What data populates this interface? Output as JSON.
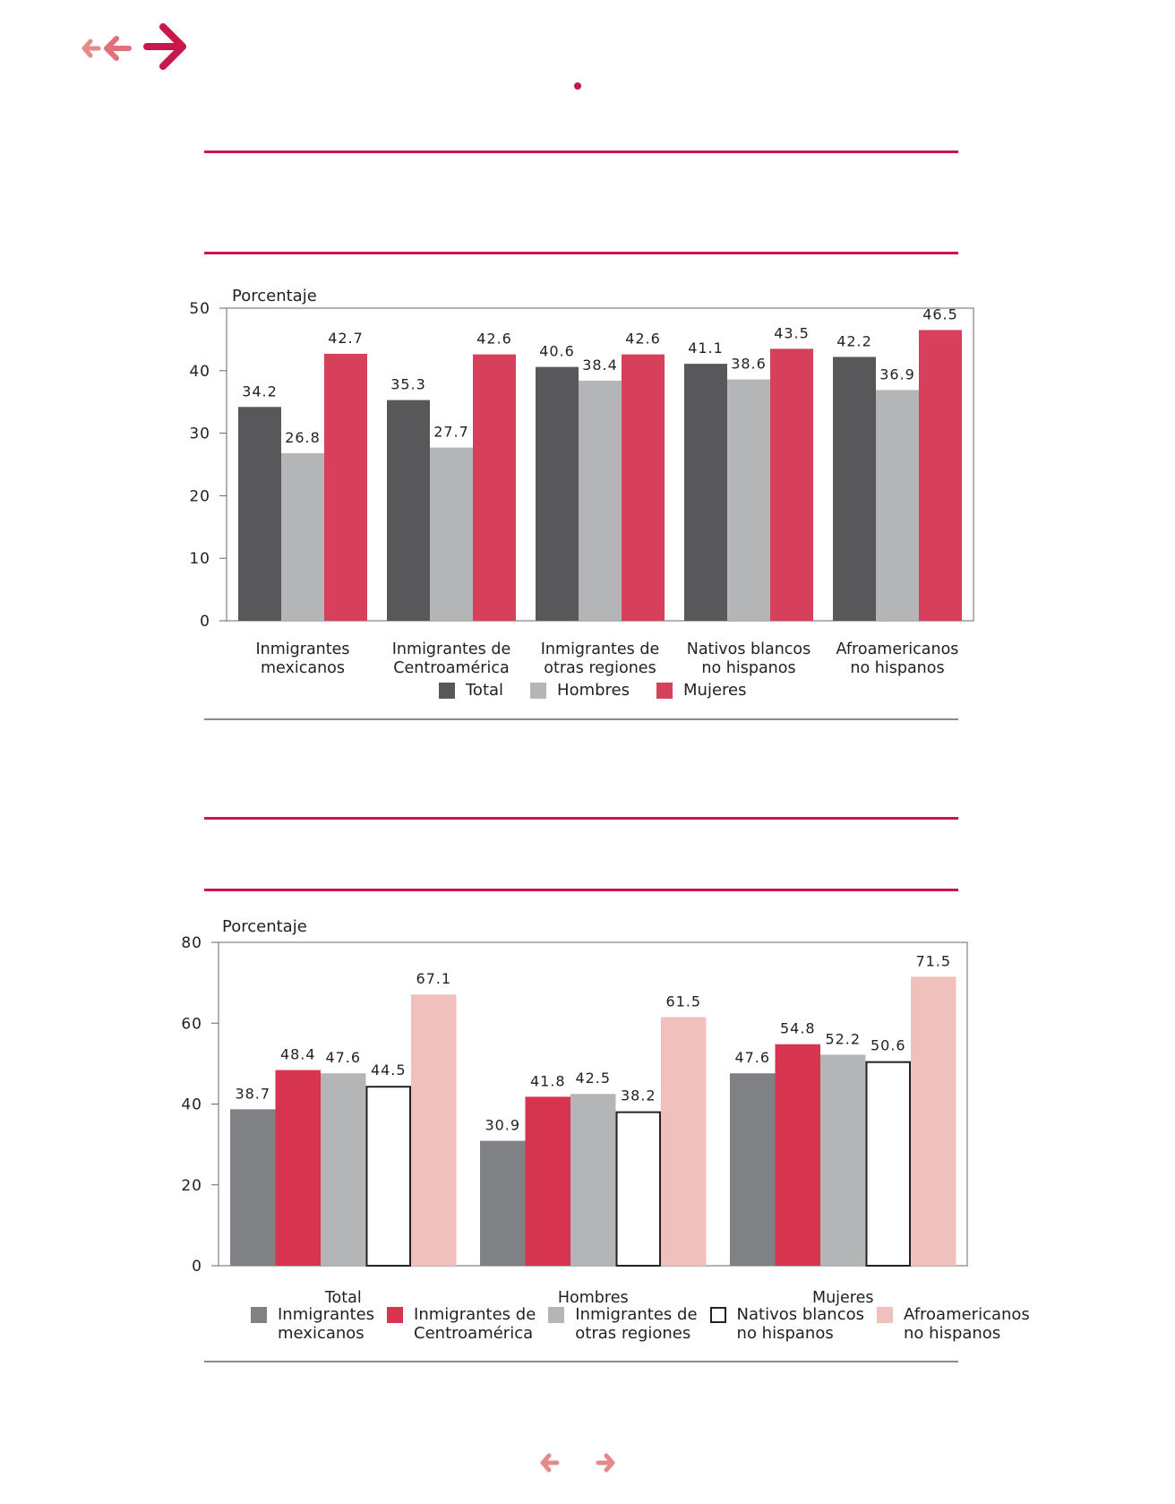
{
  "nav": {
    "top_icons": [
      "back-small-icon",
      "back-icon",
      "forward-large-icon"
    ],
    "bottom_icons": [
      "prev-page-icon",
      "next-page-icon"
    ],
    "accent": "#c8174a",
    "arrow_light": "#e58a8a"
  },
  "chart_data": [
    {
      "type": "bar",
      "ylabel": "Porcentaje",
      "ylim": [
        0,
        50
      ],
      "yticks": [
        0,
        10,
        20,
        30,
        40,
        50
      ],
      "categories": [
        "Inmigrantes mexicanos",
        "Inmigrantes de Centroamérica",
        "Inmigrantes de otras regiones",
        "Nativos blancos no hispanos",
        "Afroamericanos no hispanos"
      ],
      "category_lines": [
        [
          "Inmigrantes",
          "mexicanos"
        ],
        [
          "Inmigrantes de",
          "Centroamérica"
        ],
        [
          "Inmigrantes de",
          "otras regiones"
        ],
        [
          "Nativos blancos",
          "no hispanos"
        ],
        [
          "Afroamericanos",
          "no hispanos"
        ]
      ],
      "series": [
        {
          "name": "Total",
          "color": "#58585a",
          "values": [
            34.2,
            35.3,
            40.6,
            41.1,
            42.2
          ]
        },
        {
          "name": "Hombres",
          "color": "#b4b5b7",
          "values": [
            26.8,
            27.7,
            38.4,
            38.6,
            36.9
          ]
        },
        {
          "name": "Mujeres",
          "color": "#d7405a",
          "values": [
            42.7,
            42.6,
            42.6,
            43.5,
            46.5
          ]
        }
      ],
      "legend_position": "bottom",
      "grid": false
    },
    {
      "type": "bar",
      "ylabel": "Porcentaje",
      "ylim": [
        0,
        80
      ],
      "yticks": [
        0,
        20,
        40,
        60,
        80
      ],
      "categories": [
        "Total",
        "Hombres",
        "Mujeres"
      ],
      "series": [
        {
          "name": "Inmigrantes mexicanos",
          "lines": [
            "Inmigrantes",
            "mexicanos"
          ],
          "color": "#808184",
          "values": [
            38.7,
            30.9,
            47.6
          ]
        },
        {
          "name": "Inmigrantes de Centroamérica",
          "lines": [
            "Inmigrantes de",
            "Centroamérica"
          ],
          "color": "#d6344f",
          "values": [
            48.4,
            41.8,
            54.8
          ]
        },
        {
          "name": "Inmigrantes de otras regiones",
          "lines": [
            "Inmigrantes de",
            "otras regiones"
          ],
          "color": "#b4b5b7",
          "values": [
            47.6,
            42.5,
            52.2
          ]
        },
        {
          "name": "Nativos blancos no hispanos",
          "lines": [
            "Nativos blancos",
            "no hispanos"
          ],
          "color": "#ffffff",
          "stroke": "#222222",
          "values": [
            44.5,
            38.2,
            50.6
          ]
        },
        {
          "name": "Afroamericanos no hispanos",
          "lines": [
            "Afroamericanos",
            "no hispanos"
          ],
          "color": "#f0c1bc",
          "values": [
            67.1,
            61.5,
            71.5
          ]
        }
      ],
      "legend_position": "bottom",
      "grid": false
    }
  ]
}
